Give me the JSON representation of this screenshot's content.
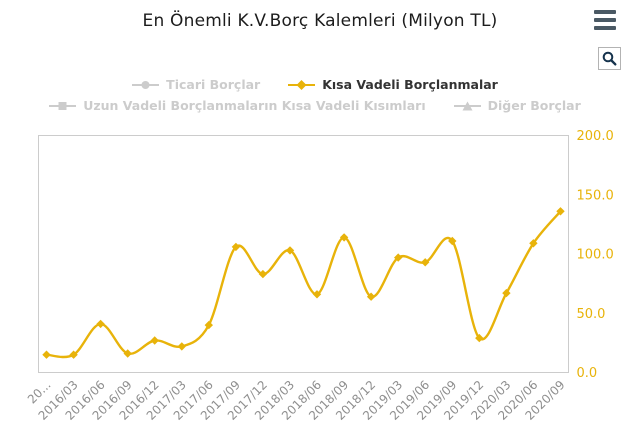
{
  "title": "En Önemli K.V.Borç Kalemleri (Milyon TL)",
  "toolbar": {
    "menu_icon": "hamburger-menu",
    "zoom_icon": "magnifier"
  },
  "legend": {
    "items": [
      {
        "label": "Ticari Borçlar",
        "marker": "circle",
        "active": false
      },
      {
        "label": "Kısa Vadeli Borçlanmalar",
        "marker": "diamond",
        "active": true
      },
      {
        "label": "Uzun Vadeli Borçlanmaların Kısa Vadeli Kısımları",
        "marker": "square",
        "active": false
      },
      {
        "label": "Diğer Borçlar",
        "marker": "triangle",
        "active": false
      }
    ]
  },
  "colors": {
    "series": "#e8b30a",
    "inactive": "#cccccc",
    "x_axis_labels": "#8e8e8e",
    "y_axis_labels": "#e8b30a",
    "plot_border": "#cccccc",
    "title": "#1c1c1c",
    "menu_icon": "#4a5964",
    "magnifier_icon": "#16334d"
  },
  "chart_data": {
    "type": "line",
    "title": "En Önemli K.V.Borç Kalemleri (Milyon TL)",
    "x": [
      "20...",
      "2016/03",
      "2016/06",
      "2016/09",
      "2016/12",
      "2017/03",
      "2017/06",
      "2017/09",
      "2017/12",
      "2018/03",
      "2018/06",
      "2018/09",
      "2018/12",
      "2019/03",
      "2019/06",
      "2019/09",
      "2019/12",
      "2020/03",
      "2020/06",
      "2020/09"
    ],
    "series": [
      {
        "name": "Kısa Vadeli Borçlanmalar",
        "values": [
          15,
          15,
          41,
          16,
          27,
          22,
          40,
          106,
          83,
          103,
          66,
          114,
          64,
          97,
          93,
          111,
          29,
          67,
          109,
          136
        ],
        "color": "#e8b30a",
        "marker": "diamond",
        "smooth": true
      }
    ],
    "hidden_series_names": [
      "Ticari Borçlar",
      "Uzun Vadeli Borçlanmaların Kısa Vadeli Kısımları",
      "Diğer Borçlar"
    ],
    "xlabel": "",
    "ylabel": "",
    "ylim": [
      0,
      200
    ],
    "yticks": [
      0,
      50,
      100,
      150,
      200
    ],
    "ytick_labels": [
      "0.0",
      "50.0",
      "100.0",
      "150.0",
      "200.0"
    ],
    "y_axis_position": "right",
    "x_label_rotation": -45,
    "grid": false,
    "legend_position": "top"
  }
}
